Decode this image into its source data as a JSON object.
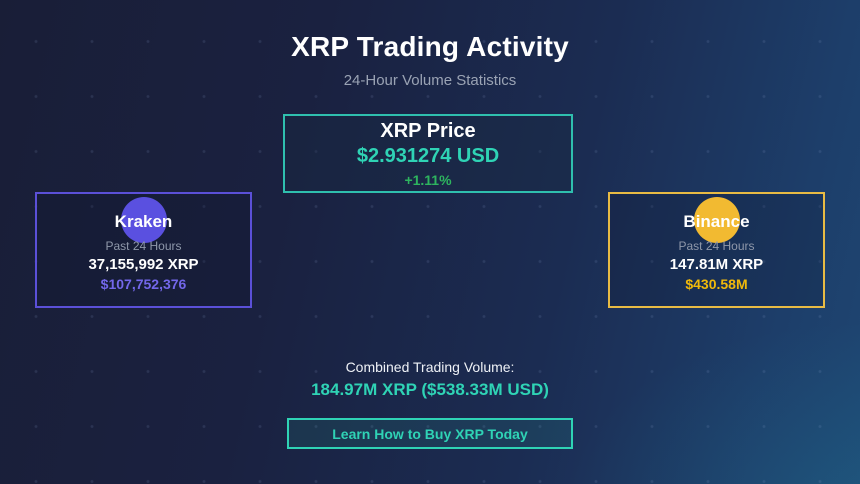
{
  "page": {
    "title": "XRP Trading Activity",
    "subtitle": "24-Hour Volume Statistics"
  },
  "price_card": {
    "title": "XRP Price",
    "price": "$2.931274 USD",
    "change": "+1.11%"
  },
  "exchanges": [
    {
      "name": "Kraken",
      "period": "Past 24 Hours",
      "volume": "37,155,992 XRP",
      "value": "$107,752,376",
      "accent_color": "#5b50d8",
      "logo_color": "#5a50e0",
      "value_color": "#7367ea"
    },
    {
      "name": "Binance",
      "period": "Past 24 Hours",
      "volume": "147.81M XRP",
      "value": "$430.58M",
      "accent_color": "#e8bb44",
      "logo_color": "#f2ba31",
      "value_color": "#f0b90b"
    }
  ],
  "combined": {
    "label": "Combined Trading Volume:",
    "value": "184.97M XRP ($538.33M USD)"
  },
  "cta": {
    "label": "Learn How to Buy XRP Today"
  },
  "colors": {
    "background_dark": "#191e37",
    "background_light": "#1e4672",
    "teal_accent": "#2fd3b5",
    "green_positive": "#2eb55f",
    "white_text": "#ffffff",
    "muted_text": "#9aa3b4"
  }
}
